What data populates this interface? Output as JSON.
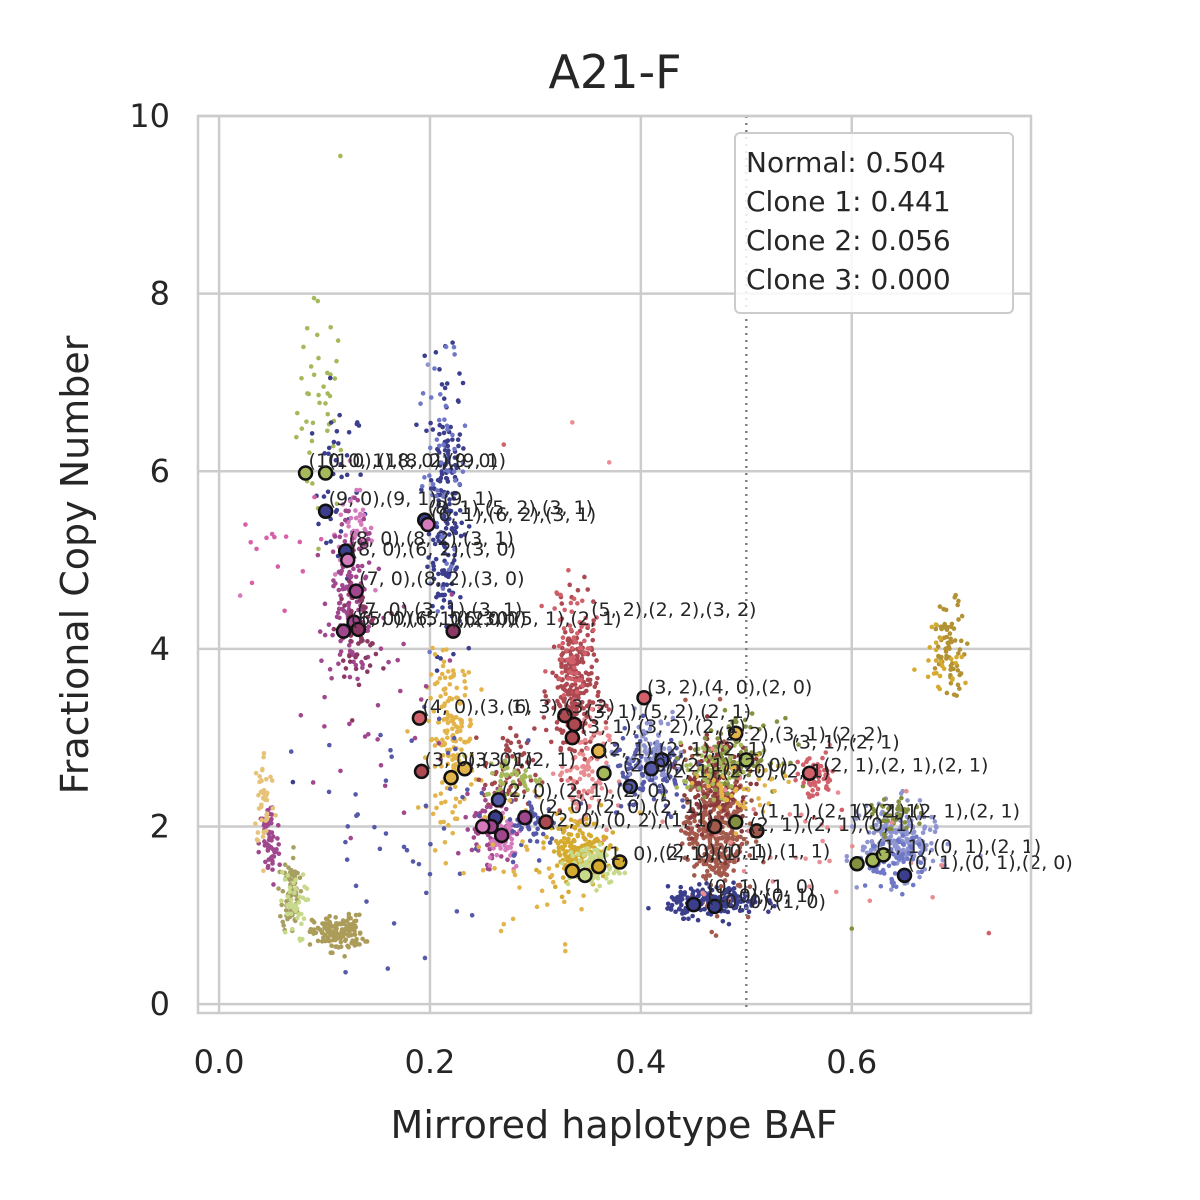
{
  "chart_data": {
    "type": "scatter",
    "title": "A21-F",
    "xlabel": "Mirrored haplotype BAF",
    "ylabel": "Fractional Copy Number",
    "xlim": [
      -0.02,
      0.77
    ],
    "ylim": [
      -0.1,
      10
    ],
    "xticks": [
      0.0,
      0.2,
      0.4,
      0.6
    ],
    "xtick_labels": [
      "0.0",
      "0.2",
      "0.4",
      "0.6"
    ],
    "yticks": [
      0,
      2,
      4,
      6,
      8,
      10
    ],
    "ytick_labels": [
      "0",
      "2",
      "4",
      "6",
      "8",
      "10"
    ],
    "grid": true,
    "vline": {
      "x": 0.5,
      "style": "dotted",
      "color": "#808080"
    },
    "legend_box": {
      "placement": "top-right",
      "lines": [
        "Normal: 0.504",
        "Clone 1: 0.441",
        "Clone 2: 0.056",
        "Clone 3: 0.000"
      ]
    },
    "clusters": [
      {
        "color": "#a5b95b",
        "cx": 0.098,
        "cy": 6.7,
        "sx": 0.012,
        "sy": 0.6,
        "n": 40
      },
      {
        "color": "#3b3e8c",
        "cx": 0.113,
        "cy": 5.8,
        "sx": 0.012,
        "sy": 0.5,
        "n": 40
      },
      {
        "color": "#3b3e8c",
        "cx": 0.215,
        "cy": 5.6,
        "sx": 0.008,
        "sy": 0.8,
        "n": 180
      },
      {
        "color": "#6f78c6",
        "cx": 0.212,
        "cy": 6.0,
        "sx": 0.012,
        "sy": 0.6,
        "n": 50
      },
      {
        "color": "#d57bbd",
        "cx": 0.128,
        "cy": 5.3,
        "sx": 0.009,
        "sy": 0.25,
        "n": 60
      },
      {
        "color": "#a0478e",
        "cx": 0.125,
        "cy": 4.6,
        "sx": 0.011,
        "sy": 0.45,
        "n": 130
      },
      {
        "color": "#8c3864",
        "cx": 0.132,
        "cy": 4.2,
        "sx": 0.01,
        "sy": 0.25,
        "n": 60
      },
      {
        "color": "#d95fa8",
        "cx": 0.05,
        "cy": 5.1,
        "sx": 0.02,
        "sy": 0.3,
        "n": 12
      },
      {
        "color": "#a0478e",
        "cx": 0.048,
        "cy": 1.8,
        "sx": 0.005,
        "sy": 0.25,
        "n": 60
      },
      {
        "color": "#e7c37a",
        "cx": 0.043,
        "cy": 2.3,
        "sx": 0.005,
        "sy": 0.28,
        "n": 45
      },
      {
        "color": "#a7a062",
        "cx": 0.068,
        "cy": 1.25,
        "sx": 0.004,
        "sy": 0.22,
        "n": 80
      },
      {
        "color": "#c7d98a",
        "cx": 0.07,
        "cy": 1.1,
        "sx": 0.006,
        "sy": 0.2,
        "n": 40
      },
      {
        "color": "#ac9c5a",
        "cx": 0.113,
        "cy": 0.8,
        "sx": 0.012,
        "sy": 0.1,
        "n": 150
      },
      {
        "color": "#e2b44a",
        "cx": 0.22,
        "cy": 3.0,
        "sx": 0.011,
        "sy": 0.45,
        "n": 170
      },
      {
        "color": "#ad4951",
        "cx": 0.337,
        "cy": 3.5,
        "sx": 0.011,
        "sy": 0.45,
        "n": 260
      },
      {
        "color": "#d1606a",
        "cx": 0.336,
        "cy": 4.1,
        "sx": 0.01,
        "sy": 0.3,
        "n": 60
      },
      {
        "color": "#e98d92",
        "cx": 0.345,
        "cy": 2.6,
        "sx": 0.012,
        "sy": 0.35,
        "n": 100
      },
      {
        "color": "#a3484c",
        "cx": 0.275,
        "cy": 2.6,
        "sx": 0.012,
        "sy": 0.25,
        "n": 70
      },
      {
        "color": "#a0478e",
        "cx": 0.26,
        "cy": 2.0,
        "sx": 0.01,
        "sy": 0.2,
        "n": 90
      },
      {
        "color": "#d57bbd",
        "cx": 0.268,
        "cy": 1.9,
        "sx": 0.01,
        "sy": 0.2,
        "n": 50
      },
      {
        "color": "#5559a8",
        "cx": 0.3,
        "cy": 2.0,
        "sx": 0.012,
        "sy": 0.15,
        "n": 50
      },
      {
        "color": "#a5b95b",
        "cx": 0.28,
        "cy": 2.55,
        "sx": 0.014,
        "sy": 0.12,
        "n": 50
      },
      {
        "color": "#d5ab2f",
        "cx": 0.34,
        "cy": 1.75,
        "sx": 0.014,
        "sy": 0.18,
        "n": 170
      },
      {
        "color": "#c7d98a",
        "cx": 0.355,
        "cy": 1.55,
        "sx": 0.012,
        "sy": 0.12,
        "n": 90
      },
      {
        "color": "#a35a4c",
        "cx": 0.47,
        "cy": 2.0,
        "sx": 0.014,
        "sy": 0.4,
        "n": 380
      },
      {
        "color": "#8c3a3c",
        "cx": 0.47,
        "cy": 2.5,
        "sx": 0.016,
        "sy": 0.3,
        "n": 150
      },
      {
        "color": "#3b3e8c",
        "cx": 0.47,
        "cy": 1.15,
        "sx": 0.022,
        "sy": 0.08,
        "n": 200
      },
      {
        "color": "#5559a8",
        "cx": 0.41,
        "cy": 2.6,
        "sx": 0.02,
        "sy": 0.25,
        "n": 120
      },
      {
        "color": "#8f95d1",
        "cx": 0.41,
        "cy": 2.9,
        "sx": 0.015,
        "sy": 0.2,
        "n": 60
      },
      {
        "color": "#858f40",
        "cx": 0.49,
        "cy": 2.8,
        "sx": 0.02,
        "sy": 0.2,
        "n": 90
      },
      {
        "color": "#a5b95b",
        "cx": 0.47,
        "cy": 2.65,
        "sx": 0.02,
        "sy": 0.15,
        "n": 70
      },
      {
        "color": "#e2b44a",
        "cx": 0.495,
        "cy": 2.4,
        "sx": 0.02,
        "sy": 0.2,
        "n": 50
      },
      {
        "color": "#d1606a",
        "cx": 0.565,
        "cy": 2.55,
        "sx": 0.01,
        "sy": 0.12,
        "n": 60
      },
      {
        "color": "#8f95d1",
        "cx": 0.645,
        "cy": 1.85,
        "sx": 0.018,
        "sy": 0.2,
        "n": 200
      },
      {
        "color": "#6f78c6",
        "cx": 0.64,
        "cy": 1.6,
        "sx": 0.014,
        "sy": 0.15,
        "n": 60
      },
      {
        "color": "#858f40",
        "cx": 0.64,
        "cy": 2.1,
        "sx": 0.01,
        "sy": 0.1,
        "n": 40
      },
      {
        "color": "#b39234",
        "cx": 0.693,
        "cy": 4.05,
        "sx": 0.008,
        "sy": 0.25,
        "n": 70
      },
      {
        "color": "#d5ab2f",
        "cx": 0.685,
        "cy": 3.9,
        "sx": 0.01,
        "sy": 0.2,
        "n": 25
      },
      {
        "color": "#5559a8",
        "cx": 0.2,
        "cy": 2.0,
        "sx": 0.06,
        "sy": 0.7,
        "n": 50
      },
      {
        "color": "#a0478e",
        "cx": 0.15,
        "cy": 3.5,
        "sx": 0.04,
        "sy": 0.6,
        "n": 35
      },
      {
        "color": "#e2b44a",
        "cx": 0.3,
        "cy": 1.6,
        "sx": 0.04,
        "sy": 0.4,
        "n": 40
      },
      {
        "color": "#e98d92",
        "cx": 0.55,
        "cy": 2.0,
        "sx": 0.06,
        "sy": 0.5,
        "n": 40
      }
    ],
    "points": [
      {
        "x": 0.115,
        "y": 9.55,
        "color": "#a5b95b"
      },
      {
        "x": 0.09,
        "y": 7.95,
        "color": "#a5b95b"
      },
      {
        "x": 0.08,
        "y": 7.4,
        "color": "#a5b95b"
      },
      {
        "x": 0.195,
        "y": 7.3,
        "color": "#3b3e8c"
      },
      {
        "x": 0.198,
        "y": 7.2,
        "color": "#8f95d1"
      },
      {
        "x": 0.228,
        "y": 7.1,
        "color": "#3b3e8c"
      },
      {
        "x": 0.02,
        "y": 4.6,
        "color": "#d57bbd"
      },
      {
        "x": 0.025,
        "y": 5.4,
        "color": "#d95fa8"
      },
      {
        "x": 0.03,
        "y": 5.2,
        "color": "#d95fa8"
      },
      {
        "x": 0.335,
        "y": 6.55,
        "color": "#e98d92"
      },
      {
        "x": 0.37,
        "y": 6.1,
        "color": "#e98d92"
      },
      {
        "x": 0.27,
        "y": 6.3,
        "color": "#d1606a"
      },
      {
        "x": 0.73,
        "y": 0.8,
        "color": "#d1606a"
      },
      {
        "x": 0.6,
        "y": 0.85,
        "color": "#858f40"
      },
      {
        "x": 0.07,
        "y": 2.5,
        "color": "#3b3e8c"
      },
      {
        "x": 0.16,
        "y": 0.4,
        "color": "#5559a8"
      },
      {
        "x": 0.27,
        "y": 0.9,
        "color": "#e2b44a"
      },
      {
        "x": 0.24,
        "y": 1.0,
        "color": "#5559a8"
      }
    ],
    "highlighted": [
      {
        "x": 0.082,
        "y": 5.98,
        "color": "#a5b95b"
      },
      {
        "x": 0.101,
        "y": 5.98,
        "color": "#a5b95b"
      },
      {
        "x": 0.101,
        "y": 5.55,
        "color": "#3b3e8c"
      },
      {
        "x": 0.195,
        "y": 5.45,
        "color": "#3b3e8c"
      },
      {
        "x": 0.198,
        "y": 5.4,
        "color": "#d57bbd"
      },
      {
        "x": 0.12,
        "y": 5.1,
        "color": "#3b3e8c"
      },
      {
        "x": 0.122,
        "y": 5.0,
        "color": "#d57bbd"
      },
      {
        "x": 0.13,
        "y": 4.65,
        "color": "#a0478e"
      },
      {
        "x": 0.128,
        "y": 4.3,
        "color": "#a0478e"
      },
      {
        "x": 0.118,
        "y": 4.2,
        "color": "#a0478e"
      },
      {
        "x": 0.132,
        "y": 4.22,
        "color": "#8c3864"
      },
      {
        "x": 0.222,
        "y": 4.2,
        "color": "#8c3864"
      },
      {
        "x": 0.19,
        "y": 3.22,
        "color": "#d1606a"
      },
      {
        "x": 0.192,
        "y": 2.62,
        "color": "#ad4951"
      },
      {
        "x": 0.22,
        "y": 2.55,
        "color": "#e2b44a"
      },
      {
        "x": 0.233,
        "y": 2.65,
        "color": "#e2b44a"
      },
      {
        "x": 0.328,
        "y": 3.25,
        "color": "#ad4951"
      },
      {
        "x": 0.337,
        "y": 3.15,
        "color": "#ad4951"
      },
      {
        "x": 0.335,
        "y": 3.0,
        "color": "#ad4951"
      },
      {
        "x": 0.403,
        "y": 3.45,
        "color": "#d1606a"
      },
      {
        "x": 0.36,
        "y": 2.85,
        "color": "#e2b44a"
      },
      {
        "x": 0.365,
        "y": 2.6,
        "color": "#a5b95b"
      },
      {
        "x": 0.39,
        "y": 2.45,
        "color": "#5559a8"
      },
      {
        "x": 0.41,
        "y": 2.65,
        "color": "#5559a8"
      },
      {
        "x": 0.42,
        "y": 2.75,
        "color": "#5559a8"
      },
      {
        "x": 0.49,
        "y": 3.05,
        "color": "#e2b44a"
      },
      {
        "x": 0.5,
        "y": 2.75,
        "color": "#a5b95b"
      },
      {
        "x": 0.56,
        "y": 2.6,
        "color": "#d1606a"
      },
      {
        "x": 0.265,
        "y": 2.3,
        "color": "#5559a8"
      },
      {
        "x": 0.262,
        "y": 2.1,
        "color": "#3b3e8c"
      },
      {
        "x": 0.258,
        "y": 2.0,
        "color": "#a0478e"
      },
      {
        "x": 0.25,
        "y": 2.0,
        "color": "#d57bbd"
      },
      {
        "x": 0.268,
        "y": 1.9,
        "color": "#a0478e"
      },
      {
        "x": 0.29,
        "y": 2.1,
        "color": "#a0478e"
      },
      {
        "x": 0.31,
        "y": 2.05,
        "color": "#ad4951"
      },
      {
        "x": 0.335,
        "y": 1.5,
        "color": "#d5ab2f"
      },
      {
        "x": 0.347,
        "y": 1.45,
        "color": "#c7d98a"
      },
      {
        "x": 0.36,
        "y": 1.55,
        "color": "#d5ab2f"
      },
      {
        "x": 0.38,
        "y": 1.6,
        "color": "#d5ab2f"
      },
      {
        "x": 0.47,
        "y": 2.0,
        "color": "#a35a4c"
      },
      {
        "x": 0.49,
        "y": 2.05,
        "color": "#858f40"
      },
      {
        "x": 0.51,
        "y": 1.95,
        "color": "#a35a4c"
      },
      {
        "x": 0.45,
        "y": 1.12,
        "color": "#3b3e8c"
      },
      {
        "x": 0.47,
        "y": 1.1,
        "color": "#3b3e8c"
      },
      {
        "x": 0.605,
        "y": 1.58,
        "color": "#858f40"
      },
      {
        "x": 0.62,
        "y": 1.62,
        "color": "#a5b95b"
      },
      {
        "x": 0.63,
        "y": 1.68,
        "color": "#a5b95b"
      },
      {
        "x": 0.65,
        "y": 1.45,
        "color": "#3b3e8c"
      }
    ],
    "annotations": [
      {
        "text": "(10, 0),(18, 0),(9, 0)",
        "x": 0.082,
        "y": 6.05
      },
      {
        "text": "(10, 1),(8, 2),(9, 1)",
        "x": 0.101,
        "y": 6.05
      },
      {
        "text": "(9, 0),(9, 1),(9, 1)",
        "x": 0.101,
        "y": 5.62
      },
      {
        "text": "(8, 1),(5, 2),(3, 1)",
        "x": 0.195,
        "y": 5.52
      },
      {
        "text": "(6, 1),(6, 2),(3, 1)",
        "x": 0.198,
        "y": 5.44
      },
      {
        "text": "(8, 0),(8, 2),(3, 1)",
        "x": 0.12,
        "y": 5.17
      },
      {
        "text": "(8, 0),(6, 2),(3, 0)",
        "x": 0.122,
        "y": 5.05
      },
      {
        "text": "(7, 0),(8, 2),(3, 0)",
        "x": 0.13,
        "y": 4.72
      },
      {
        "text": "(7, 0),(3, 1),(3, 1)",
        "x": 0.128,
        "y": 4.37
      },
      {
        "text": "(6, 0),(6, 1),(2, 0)",
        "x": 0.122,
        "y": 4.27
      },
      {
        "text": "(5, 0),(5, 0),(3, 0)",
        "x": 0.132,
        "y": 4.27
      },
      {
        "text": "(6, 0),(5, 1),(2, 1)",
        "x": 0.222,
        "y": 4.27
      },
      {
        "text": "(5, 2),(2, 2),(3, 2)",
        "x": 0.35,
        "y": 4.37
      },
      {
        "text": "(4, 0),(3, 1)",
        "x": 0.19,
        "y": 3.28
      },
      {
        "text": "(6, 3),(3, 2)",
        "x": 0.27,
        "y": 3.28
      },
      {
        "text": "(3, 2),(4, 0),(2, 0)",
        "x": 0.403,
        "y": 3.5
      },
      {
        "text": "(3, 1),(5, 2),(2, 1)",
        "x": 0.345,
        "y": 3.22
      },
      {
        "text": "(3, 1),(3, 2),(2, 1)",
        "x": 0.34,
        "y": 3.05
      },
      {
        "text": "(2, 2),(3, 1),(2, 2)",
        "x": 0.47,
        "y": 2.97
      },
      {
        "text": "(3, 1),(2, 1)",
        "x": 0.54,
        "y": 2.88
      },
      {
        "text": "(3, 0),(3, 1)",
        "x": 0.192,
        "y": 2.68
      },
      {
        "text": "(3, 0),(2, 1)",
        "x": 0.233,
        "y": 2.68
      },
      {
        "text": "(2, 1),(2, 1),(2, 1)",
        "x": 0.36,
        "y": 2.8
      },
      {
        "text": "(2, 0),(2, 1),(2, 0)",
        "x": 0.38,
        "y": 2.62
      },
      {
        "text": "(2, 1),(2, 0),(2, 1)",
        "x": 0.42,
        "y": 2.55
      },
      {
        "text": "(2, 1),(2, 1),(2, 1)",
        "x": 0.57,
        "y": 2.62
      },
      {
        "text": "(2, 0),(2, 1),(2, 0)",
        "x": 0.265,
        "y": 2.33
      },
      {
        "text": "(2, 0),(2, 0),(2, 1)",
        "x": 0.3,
        "y": 2.15
      },
      {
        "text": "(2, 0),(0, 2),(1, 1)",
        "x": 0.31,
        "y": 2.0
      },
      {
        "text": "(1, 1),(2, 1),(2, 1)",
        "x": 0.51,
        "y": 2.1
      },
      {
        "text": "(2, 1),(2, 1),(2, 1)",
        "x": 0.6,
        "y": 2.1
      },
      {
        "text": "(2, 1),(2, 1),(0, 1)",
        "x": 0.5,
        "y": 1.95
      },
      {
        "text": "(1, 0),(2, 1),(1, 1)",
        "x": 0.36,
        "y": 1.62
      },
      {
        "text": "(2, 0),(0, 1),(1, 1)",
        "x": 0.42,
        "y": 1.65
      },
      {
        "text": "(1, 1),(0, 1),(2, 1)",
        "x": 0.62,
        "y": 1.7
      },
      {
        "text": "(0, 1),(0, 1),(2, 0)",
        "x": 0.65,
        "y": 1.52
      },
      {
        "text": "(0, 1),(1, 0)",
        "x": 0.46,
        "y": 1.25
      },
      {
        "text": "(1, 0),(0, 1)",
        "x": 0.46,
        "y": 1.15
      },
      {
        "text": "(0, 0),(1, 0)",
        "x": 0.47,
        "y": 1.08
      }
    ]
  }
}
